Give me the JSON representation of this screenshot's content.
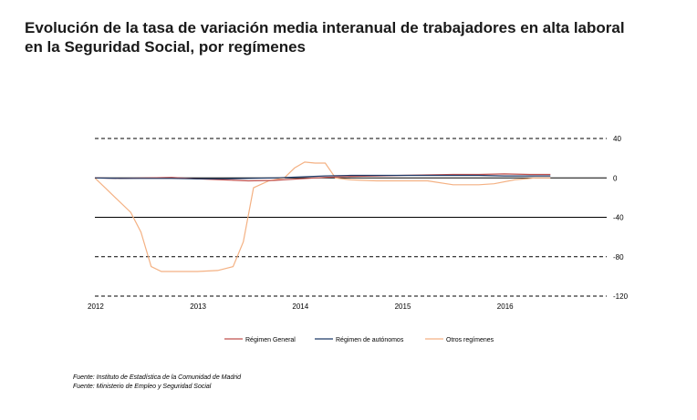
{
  "title": {
    "line1": "Evolución de la tasa de variación media interanual de trabajadores en alta laboral",
    "line2": "en la Seguridad Social, por  regímenes"
  },
  "sources": {
    "line1": "Fuente: Instituto de Estadística de la Comunidad de Madrid",
    "line2": "Fuente: Ministerio de Empleo y Seguridad Social"
  },
  "chart_data": {
    "type": "line",
    "title": "",
    "xlabel": "",
    "ylabel": "",
    "xlim": [
      2012,
      2017.0
    ],
    "ylim": [
      -120,
      40
    ],
    "x_ticks": [
      "2012",
      "2013",
      "2014",
      "2015",
      "2016"
    ],
    "y_ticks": [
      "40",
      "0",
      "-40",
      "-80",
      "-120"
    ],
    "y_tick_values": [
      40,
      0,
      -40,
      -80,
      -120
    ],
    "grid": "horizontal dashed at 40, -80, -120; solid at 0 and -40",
    "legend_position": "bottom",
    "series": [
      {
        "name": "Régimen General",
        "color": "#c0504d",
        "points": [
          [
            2012.0,
            0
          ],
          [
            2012.25,
            -0.5
          ],
          [
            2012.5,
            0
          ],
          [
            2012.75,
            0.5
          ],
          [
            2013.0,
            -1
          ],
          [
            2013.25,
            -2
          ],
          [
            2013.5,
            -3
          ],
          [
            2013.75,
            -2.5
          ],
          [
            2014.0,
            -1
          ],
          [
            2014.25,
            0.5
          ],
          [
            2014.5,
            1.5
          ],
          [
            2014.75,
            2
          ],
          [
            2015.0,
            2.5
          ],
          [
            2015.25,
            3
          ],
          [
            2015.5,
            3.5
          ],
          [
            2015.75,
            3.5
          ],
          [
            2016.0,
            4
          ],
          [
            2016.25,
            3.5
          ],
          [
            2016.45,
            3.5
          ]
        ]
      },
      {
        "name": "Régimen de autónomos",
        "color": "#1f3a68",
        "points": [
          [
            2012.0,
            0
          ],
          [
            2012.25,
            -0.5
          ],
          [
            2012.5,
            -0.5
          ],
          [
            2012.75,
            -0.5
          ],
          [
            2013.0,
            -1
          ],
          [
            2013.25,
            -1
          ],
          [
            2013.5,
            -0.5
          ],
          [
            2013.75,
            0
          ],
          [
            2014.0,
            1
          ],
          [
            2014.25,
            2
          ],
          [
            2014.5,
            2.5
          ],
          [
            2014.75,
            2.5
          ],
          [
            2015.0,
            2.5
          ],
          [
            2015.25,
            2.5
          ],
          [
            2015.5,
            2.5
          ],
          [
            2015.75,
            2.5
          ],
          [
            2016.0,
            2
          ],
          [
            2016.25,
            2
          ],
          [
            2016.45,
            2
          ]
        ]
      },
      {
        "name": "Otros regímenes",
        "color": "#f4b183",
        "points": [
          [
            2012.0,
            0
          ],
          [
            2012.1,
            -10
          ],
          [
            2012.2,
            -20
          ],
          [
            2012.35,
            -35
          ],
          [
            2012.45,
            -55
          ],
          [
            2012.55,
            -90
          ],
          [
            2012.65,
            -95
          ],
          [
            2012.8,
            -95
          ],
          [
            2013.0,
            -95
          ],
          [
            2013.2,
            -94
          ],
          [
            2013.35,
            -90
          ],
          [
            2013.45,
            -65
          ],
          [
            2013.55,
            -10
          ],
          [
            2013.7,
            -3
          ],
          [
            2013.85,
            0
          ],
          [
            2013.95,
            10
          ],
          [
            2014.05,
            16
          ],
          [
            2014.15,
            15
          ],
          [
            2014.25,
            15
          ],
          [
            2014.35,
            0
          ],
          [
            2014.5,
            -2
          ],
          [
            2014.75,
            -3
          ],
          [
            2015.0,
            -3
          ],
          [
            2015.25,
            -3
          ],
          [
            2015.5,
            -7
          ],
          [
            2015.75,
            -7
          ],
          [
            2015.9,
            -6
          ],
          [
            2016.1,
            -2
          ],
          [
            2016.3,
            0
          ],
          [
            2016.45,
            0
          ]
        ]
      }
    ]
  }
}
